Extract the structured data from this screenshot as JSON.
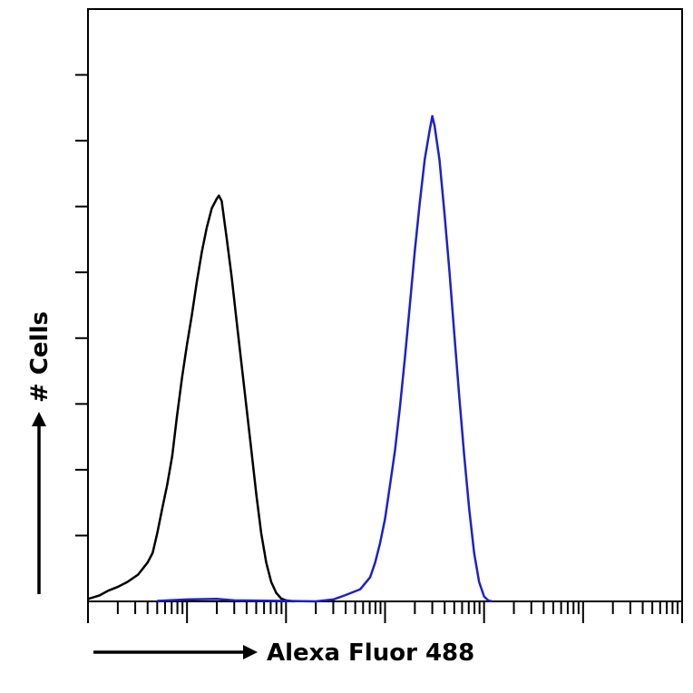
{
  "chart_data": {
    "type": "line",
    "title": "",
    "xlabel": "Alexa Fluor 488",
    "ylabel": "# Cells",
    "x_scale": "log",
    "xlim": [
      1,
      1000000
    ],
    "ylim": [
      0,
      100
    ],
    "grid": false,
    "legend": "none",
    "series": [
      {
        "color": "#000000",
        "points": [
          [
            1.0,
            0.5
          ],
          [
            1.3,
            1.2
          ],
          [
            1.6,
            2.2
          ],
          [
            2.0,
            3.0
          ],
          [
            2.5,
            4.0
          ],
          [
            3.2,
            5.5
          ],
          [
            4.0,
            8.0
          ],
          [
            4.5,
            10.0
          ],
          [
            5.0,
            14.0
          ],
          [
            5.6,
            19.0
          ],
          [
            6.3,
            24.0
          ],
          [
            7.1,
            30.0
          ],
          [
            7.9,
            38.0
          ],
          [
            8.9,
            46.0
          ],
          [
            10.0,
            53.0
          ],
          [
            11.2,
            59.0
          ],
          [
            12.6,
            66.0
          ],
          [
            14.1,
            72.0
          ],
          [
            15.8,
            77.0
          ],
          [
            17.8,
            81.0
          ],
          [
            20.0,
            83.0
          ],
          [
            21.0,
            83.6
          ],
          [
            22.4,
            82.5
          ],
          [
            25.1,
            75.0
          ],
          [
            28.2,
            67.0
          ],
          [
            31.6,
            58.0
          ],
          [
            35.5,
            49.0
          ],
          [
            39.8,
            40.0
          ],
          [
            44.7,
            31.0
          ],
          [
            50.1,
            22.0
          ],
          [
            56.2,
            14.0
          ],
          [
            63.1,
            8.0
          ],
          [
            70.8,
            4.0
          ],
          [
            79.4,
            1.8
          ],
          [
            89.1,
            0.6
          ],
          [
            100.0,
            0.2
          ],
          [
            120.0,
            0.0
          ]
        ]
      },
      {
        "color": "#1f1fcc",
        "points": [
          [
            5.0,
            0.1
          ],
          [
            10.0,
            0.4
          ],
          [
            20.0,
            0.5
          ],
          [
            30.0,
            0.2
          ],
          [
            100.0,
            0.1
          ],
          [
            200.0,
            0.0
          ],
          [
            300.0,
            0.4
          ],
          [
            400.0,
            1.3
          ],
          [
            562.0,
            2.5
          ],
          [
            708.0,
            5.0
          ],
          [
            794.0,
            8.0
          ],
          [
            891.0,
            12.0
          ],
          [
            1000.0,
            17.0
          ],
          [
            1122.0,
            24.0
          ],
          [
            1259.0,
            31.0
          ],
          [
            1413.0,
            40.0
          ],
          [
            1585.0,
            50.0
          ],
          [
            1778.0,
            61.0
          ],
          [
            1995.0,
            72.0
          ],
          [
            2239.0,
            82.0
          ],
          [
            2512.0,
            91.0
          ],
          [
            2818.0,
            97.0
          ],
          [
            3000.0,
            100.0
          ],
          [
            3162.0,
            98.0
          ],
          [
            3548.0,
            91.0
          ],
          [
            3981.0,
            80.0
          ],
          [
            4467.0,
            68.0
          ],
          [
            5012.0,
            55.0
          ],
          [
            5623.0,
            42.0
          ],
          [
            6310.0,
            30.0
          ],
          [
            7079.0,
            19.0
          ],
          [
            7943.0,
            10.0
          ],
          [
            8913.0,
            4.0
          ],
          [
            10000.0,
            1.0
          ],
          [
            11000.0,
            0.2
          ],
          [
            12000.0,
            0.0
          ]
        ]
      }
    ]
  }
}
